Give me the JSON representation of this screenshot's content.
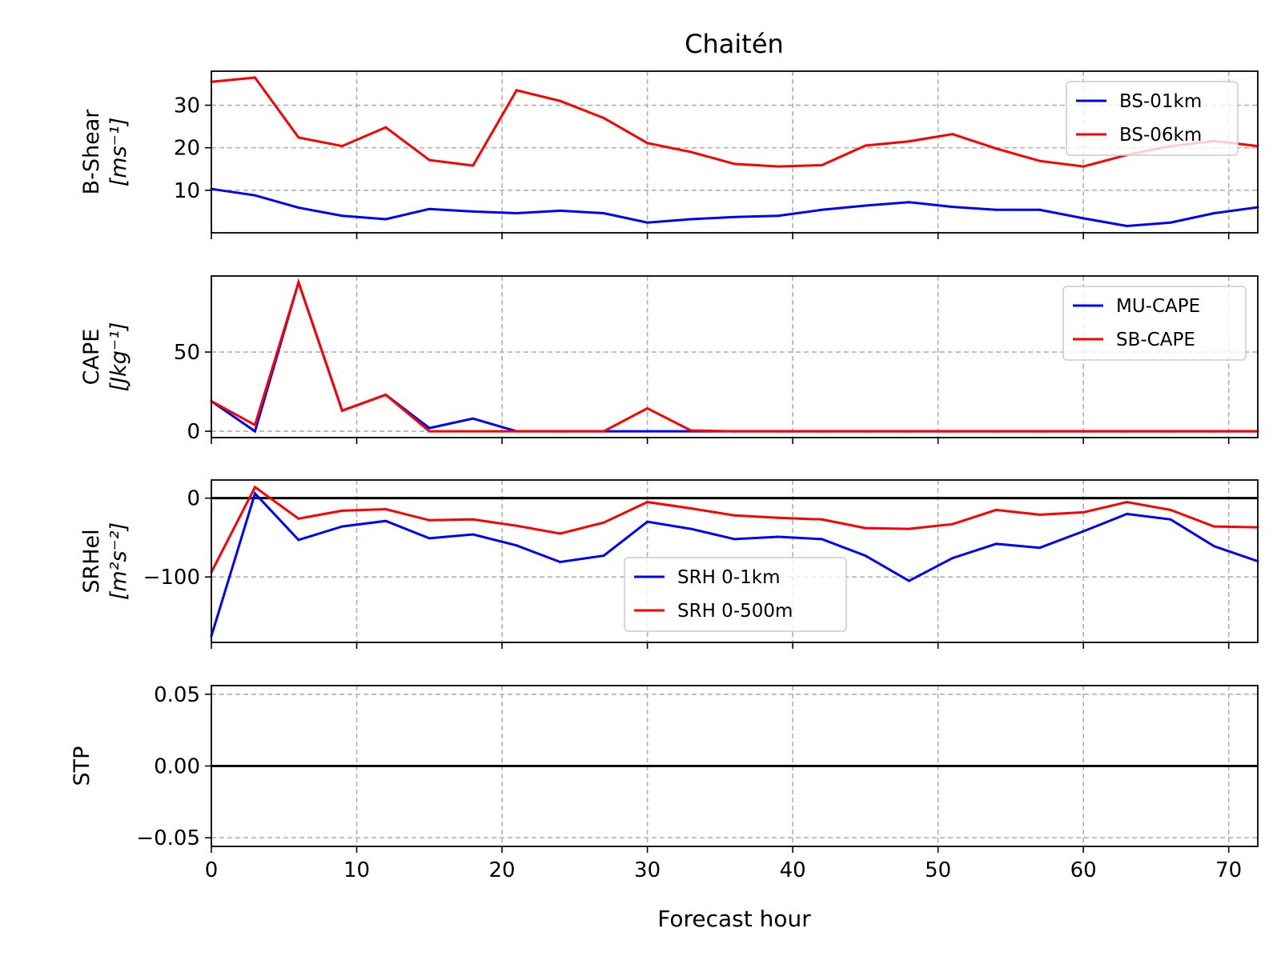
{
  "title": "Chaitén",
  "xlabel": "Forecast hour",
  "colors": {
    "blue": "#0000ff",
    "red": "#ff0000",
    "grid": "#b0b0b0",
    "zero": "#000000"
  },
  "chart_data": [
    {
      "type": "line",
      "panel": "bshear",
      "title": "Chaitén",
      "ylabel": "B-Shear",
      "yunit": "[ms⁻¹]",
      "xlim": [
        0,
        72
      ],
      "ylim": [
        0,
        38
      ],
      "xticks": [
        0,
        10,
        20,
        30,
        40,
        50,
        60,
        70
      ],
      "yticks": [
        10,
        20,
        30
      ],
      "ytick_labels": [
        "10",
        "20",
        "30"
      ],
      "zero_line": false,
      "legend": "upper right",
      "x": [
        0,
        3,
        6,
        9,
        12,
        15,
        18,
        21,
        24,
        27,
        30,
        33,
        36,
        39,
        42,
        45,
        48,
        51,
        54,
        57,
        60,
        63,
        66,
        69,
        72
      ],
      "series": [
        {
          "name": "BS-01km",
          "color": "#0000ff",
          "values": [
            10.3,
            8.8,
            5.9,
            4.0,
            3.2,
            5.6,
            5.0,
            4.6,
            5.2,
            4.6,
            2.4,
            3.2,
            3.7,
            4.0,
            5.4,
            6.4,
            7.2,
            6.1,
            5.4,
            5.4,
            3.4,
            1.6,
            2.4,
            4.6,
            6.0
          ]
        },
        {
          "name": "BS-06km",
          "color": "#ff0000",
          "values": [
            35.5,
            36.5,
            22.4,
            20.4,
            24.8,
            17.1,
            15.8,
            33.5,
            31.0,
            27.0,
            21.1,
            19.0,
            16.2,
            15.6,
            15.9,
            20.5,
            21.5,
            23.2,
            19.8,
            16.9,
            15.6,
            18.3,
            20.4,
            21.6,
            20.4
          ]
        }
      ]
    },
    {
      "type": "line",
      "panel": "cape",
      "ylabel": "CAPE",
      "yunit": "[Jkg⁻¹]",
      "xlim": [
        0,
        72
      ],
      "ylim": [
        -4,
        98
      ],
      "xticks": [
        0,
        10,
        20,
        30,
        40,
        50,
        60,
        70
      ],
      "yticks": [
        0,
        50
      ],
      "ytick_labels": [
        "0",
        "50"
      ],
      "zero_line": false,
      "legend": "upper right",
      "x": [
        0,
        3,
        6,
        9,
        12,
        15,
        18,
        21,
        24,
        27,
        30,
        33,
        36,
        39,
        42,
        45,
        48,
        51,
        54,
        57,
        60,
        63,
        66,
        69,
        72
      ],
      "series": [
        {
          "name": "MU-CAPE",
          "color": "#0000ff",
          "values": [
            19,
            0,
            94,
            13,
            23,
            2,
            8,
            0,
            0,
            0,
            0,
            0,
            0,
            0,
            0,
            0,
            0,
            0,
            0,
            0,
            0,
            0,
            0,
            0,
            0
          ]
        },
        {
          "name": "SB-CAPE",
          "color": "#ff0000",
          "values": [
            19,
            4,
            94,
            13,
            23,
            0,
            0,
            0,
            0,
            0,
            14.5,
            0.5,
            0,
            0,
            0,
            0,
            0,
            0,
            0,
            0,
            0,
            0,
            0,
            0,
            0
          ]
        }
      ]
    },
    {
      "type": "line",
      "panel": "srhel",
      "ylabel": "SRHel",
      "yunit": "[m²s⁻²]",
      "xlim": [
        0,
        72
      ],
      "ylim": [
        -183,
        23
      ],
      "xticks": [
        0,
        10,
        20,
        30,
        40,
        50,
        60,
        70
      ],
      "yticks": [
        -100,
        0
      ],
      "ytick_labels": [
        "−100",
        "0"
      ],
      "zero_line": true,
      "legend": "lower center",
      "x": [
        0,
        3,
        6,
        9,
        12,
        15,
        18,
        21,
        24,
        27,
        30,
        33,
        36,
        39,
        42,
        45,
        48,
        51,
        54,
        57,
        60,
        63,
        66,
        69,
        72
      ],
      "series": [
        {
          "name": "SRH 0-1km",
          "color": "#0000ff",
          "values": [
            -175,
            6,
            -53,
            -36,
            -29,
            -51,
            -46,
            -60,
            -81,
            -73,
            -30,
            -39,
            -52,
            -49,
            -52,
            -73,
            -105,
            -76,
            -58,
            -63,
            -42,
            -20,
            -27,
            -61,
            -80
          ]
        },
        {
          "name": "SRH 0-500m",
          "color": "#ff0000",
          "values": [
            -94,
            14,
            -26,
            -16,
            -14,
            -28,
            -27,
            -35,
            -45,
            -31,
            -5,
            -13,
            -22,
            -25,
            -27,
            -38,
            -39,
            -33,
            -15,
            -21,
            -18,
            -5,
            -15,
            -36,
            -37
          ]
        }
      ]
    },
    {
      "type": "line",
      "panel": "stp",
      "ylabel": "STP",
      "yunit": "",
      "xlabel": "Forecast hour",
      "xlim": [
        0,
        72
      ],
      "ylim": [
        -0.056,
        0.056
      ],
      "xticks": [
        0,
        10,
        20,
        30,
        40,
        50,
        60,
        70
      ],
      "xtick_labels": [
        "0",
        "10",
        "20",
        "30",
        "40",
        "50",
        "60",
        "70"
      ],
      "yticks": [
        -0.05,
        0,
        0.05
      ],
      "ytick_labels": [
        "−0.05",
        "0.00",
        "0.05"
      ],
      "zero_line": true,
      "legend": "none",
      "x": [],
      "series": []
    }
  ]
}
